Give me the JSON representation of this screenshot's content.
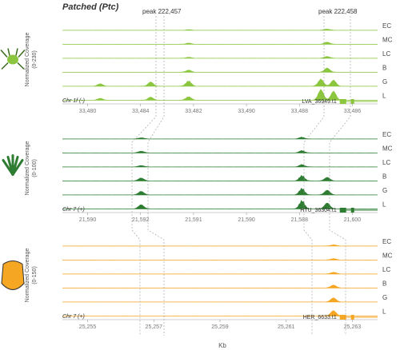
{
  "figure": {
    "title": "Patched (Ptc)",
    "xlabel": "Kb",
    "peaks": [
      "peak 222,457",
      "peak 222,458"
    ],
    "track_labels": [
      "EC",
      "MC",
      "LC",
      "B",
      "G",
      "L"
    ]
  },
  "chart_data": [
    {
      "type": "area",
      "species_icon": "green-frog-icon",
      "color": "#8cc63f",
      "ylabel": "Normalized Coverage",
      "yrange_label": "(0-230)",
      "chrom_label": "Chr 1f (-)",
      "gene_label": "LVA_36949.t1",
      "xticks": [
        "33,480",
        "33,484",
        "33,482",
        "33,490",
        "33,488",
        "33,486"
      ],
      "tracks": [
        {
          "name": "EC",
          "peaks": [
            [
              0.4,
              0.05
            ],
            [
              0.84,
              0.1
            ]
          ]
        },
        {
          "name": "MC",
          "peaks": [
            [
              0.4,
              0.1
            ],
            [
              0.84,
              0.18
            ]
          ]
        },
        {
          "name": "LC",
          "peaks": [
            [
              0.4,
              0.08
            ],
            [
              0.84,
              0.15
            ]
          ]
        },
        {
          "name": "B",
          "peaks": [
            [
              0.4,
              0.18
            ],
            [
              0.84,
              0.35
            ]
          ]
        },
        {
          "name": "G",
          "peaks": [
            [
              0.12,
              0.2
            ],
            [
              0.28,
              0.35
            ],
            [
              0.4,
              0.45
            ],
            [
              0.82,
              0.6
            ],
            [
              0.86,
              0.5
            ]
          ]
        },
        {
          "name": "L",
          "peaks": [
            [
              0.12,
              0.15
            ],
            [
              0.28,
              0.25
            ],
            [
              0.4,
              0.3
            ],
            [
              0.82,
              0.9
            ],
            [
              0.86,
              0.75
            ]
          ]
        }
      ]
    },
    {
      "type": "area",
      "species_icon": "dark-green-plant-icon",
      "color": "#2e7d32",
      "ylabel": "Normalized Coverage",
      "yrange_label": "(0-100)",
      "chrom_label": "Chr 7 (+)",
      "gene_label": "HTU_36304.t1",
      "xticks": [
        "21,590",
        "21,592",
        "21,591",
        "21,590",
        "21,588",
        "21,600"
      ],
      "tracks": [
        {
          "name": "EC",
          "peaks": [
            [
              0.25,
              0.1
            ],
            [
              0.76,
              0.15
            ]
          ]
        },
        {
          "name": "MC",
          "peaks": [
            [
              0.25,
              0.15
            ],
            [
              0.76,
              0.2
            ]
          ]
        },
        {
          "name": "LC",
          "peaks": [
            [
              0.25,
              0.12
            ],
            [
              0.76,
              0.2
            ]
          ]
        },
        {
          "name": "B",
          "peaks": [
            [
              0.25,
              0.25
            ],
            [
              0.76,
              0.45
            ],
            [
              0.84,
              0.3
            ]
          ]
        },
        {
          "name": "G",
          "peaks": [
            [
              0.25,
              0.3
            ],
            [
              0.76,
              0.55
            ],
            [
              0.84,
              0.4
            ]
          ]
        },
        {
          "name": "L",
          "peaks": [
            [
              0.25,
              0.35
            ],
            [
              0.76,
              0.7
            ],
            [
              0.84,
              0.5
            ]
          ]
        }
      ]
    },
    {
      "type": "area",
      "species_icon": "orange-seed-icon",
      "color": "#f5a623",
      "ylabel": "Normalized Coverage",
      "yrange_label": "(0-150)",
      "chrom_label": "Chr 7 (+)",
      "gene_label": "HER_6633.t1",
      "xticks": [
        "25,255",
        "25,257",
        "25,259",
        "25,261",
        "25,263"
      ],
      "tracks": [
        {
          "name": "EC",
          "peaks": [
            [
              0.86,
              0.1
            ]
          ]
        },
        {
          "name": "MC",
          "peaks": [
            [
              0.86,
              0.12
            ]
          ]
        },
        {
          "name": "LC",
          "peaks": [
            [
              0.86,
              0.15
            ]
          ]
        },
        {
          "name": "B",
          "peaks": [
            [
              0.86,
              0.25
            ]
          ]
        },
        {
          "name": "G",
          "peaks": [
            [
              0.86,
              0.35
            ]
          ]
        },
        {
          "name": "L",
          "peaks": [
            [
              0.86,
              0.45
            ]
          ]
        }
      ]
    }
  ]
}
